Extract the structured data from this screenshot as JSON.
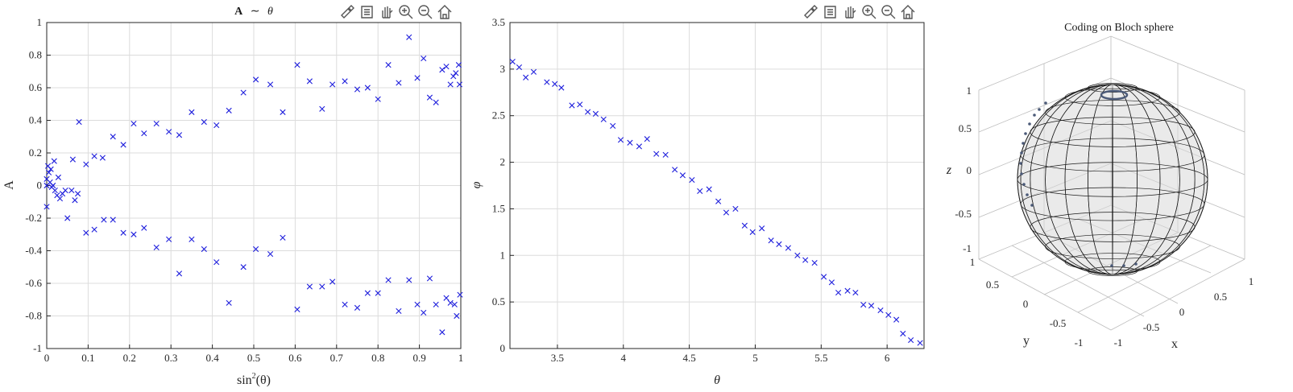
{
  "colors": {
    "marker": "#1f1fdc",
    "grid": "#dcdcdc",
    "axis": "#262626",
    "sphere": "#d9d9d9"
  },
  "toolbar_icons": [
    "brush-icon",
    "legend-icon",
    "pan-icon",
    "zoom-in-icon",
    "zoom-out-icon",
    "home-icon"
  ],
  "chart_data": [
    {
      "type": "scatter",
      "title_text": "A ∼ θ",
      "title_a": "A",
      "title_sim": "∼",
      "title_theta": "θ",
      "xlabel": "sin^{2}(θ)",
      "xlabel_base": "sin",
      "xlabel_exp": "2",
      "xlabel_arg": "(θ)",
      "ylabel": "A",
      "xlim": [
        0,
        1
      ],
      "ylim": [
        -1,
        1
      ],
      "xticks": [
        "0",
        "0.1",
        "0.2",
        "0.3",
        "0.4",
        "0.5",
        "0.6",
        "0.7",
        "0.8",
        "0.9",
        "1"
      ],
      "yticks": [
        "-1",
        "-0.8",
        "-0.6",
        "-0.4",
        "-0.2",
        "0",
        "0.2",
        "0.4",
        "0.6",
        "0.8",
        "1"
      ],
      "grid": true,
      "marker": "x",
      "points": [
        [
          0.0,
          -0.13
        ],
        [
          0.0,
          0.0
        ],
        [
          0.0,
          0.04
        ],
        [
          0.003,
          0.12
        ],
        [
          0.005,
          0.08
        ],
        [
          0.008,
          0.02
        ],
        [
          0.01,
          0.1
        ],
        [
          0.012,
          -0.01
        ],
        [
          0.015,
          0.0
        ],
        [
          0.018,
          0.15
        ],
        [
          0.02,
          -0.03
        ],
        [
          0.025,
          -0.06
        ],
        [
          0.028,
          0.05
        ],
        [
          0.032,
          -0.08
        ],
        [
          0.038,
          -0.05
        ],
        [
          0.045,
          -0.03
        ],
        [
          0.05,
          -0.2
        ],
        [
          0.06,
          -0.03
        ],
        [
          0.063,
          0.16
        ],
        [
          0.068,
          -0.09
        ],
        [
          0.075,
          -0.05
        ],
        [
          0.078,
          0.39
        ],
        [
          0.095,
          0.13
        ],
        [
          0.095,
          -0.29
        ],
        [
          0.115,
          0.18
        ],
        [
          0.115,
          -0.27
        ],
        [
          0.135,
          0.17
        ],
        [
          0.138,
          -0.21
        ],
        [
          0.16,
          0.3
        ],
        [
          0.16,
          -0.21
        ],
        [
          0.185,
          0.25
        ],
        [
          0.185,
          -0.29
        ],
        [
          0.21,
          0.38
        ],
        [
          0.21,
          -0.3
        ],
        [
          0.235,
          0.32
        ],
        [
          0.235,
          -0.26
        ],
        [
          0.265,
          0.38
        ],
        [
          0.265,
          -0.38
        ],
        [
          0.295,
          0.33
        ],
        [
          0.295,
          -0.33
        ],
        [
          0.32,
          0.31
        ],
        [
          0.32,
          -0.54
        ],
        [
          0.35,
          0.45
        ],
        [
          0.35,
          -0.33
        ],
        [
          0.38,
          0.39
        ],
        [
          0.38,
          -0.39
        ],
        [
          0.41,
          0.37
        ],
        [
          0.41,
          -0.47
        ],
        [
          0.44,
          0.46
        ],
        [
          0.44,
          -0.72
        ],
        [
          0.475,
          0.57
        ],
        [
          0.475,
          -0.5
        ],
        [
          0.505,
          0.65
        ],
        [
          0.505,
          -0.39
        ],
        [
          0.54,
          0.62
        ],
        [
          0.54,
          -0.42
        ],
        [
          0.57,
          0.45
        ],
        [
          0.57,
          -0.32
        ],
        [
          0.605,
          0.74
        ],
        [
          0.605,
          -0.76
        ],
        [
          0.635,
          0.64
        ],
        [
          0.635,
          -0.62
        ],
        [
          0.665,
          0.47
        ],
        [
          0.665,
          -0.62
        ],
        [
          0.69,
          0.62
        ],
        [
          0.69,
          -0.59
        ],
        [
          0.72,
          0.64
        ],
        [
          0.72,
          -0.73
        ],
        [
          0.75,
          0.59
        ],
        [
          0.75,
          -0.75
        ],
        [
          0.775,
          0.6
        ],
        [
          0.775,
          -0.66
        ],
        [
          0.8,
          0.53
        ],
        [
          0.8,
          -0.66
        ],
        [
          0.825,
          0.74
        ],
        [
          0.825,
          -0.58
        ],
        [
          0.85,
          0.63
        ],
        [
          0.85,
          -0.77
        ],
        [
          0.875,
          0.91
        ],
        [
          0.875,
          -0.58
        ],
        [
          0.895,
          0.66
        ],
        [
          0.895,
          -0.73
        ],
        [
          0.91,
          0.78
        ],
        [
          0.91,
          -0.78
        ],
        [
          0.925,
          0.54
        ],
        [
          0.925,
          -0.57
        ],
        [
          0.94,
          0.51
        ],
        [
          0.94,
          -0.73
        ],
        [
          0.955,
          0.71
        ],
        [
          0.955,
          -0.9
        ],
        [
          0.965,
          0.73
        ],
        [
          0.965,
          -0.69
        ],
        [
          0.975,
          0.62
        ],
        [
          0.975,
          -0.72
        ],
        [
          0.982,
          0.67
        ],
        [
          0.985,
          -0.73
        ],
        [
          0.988,
          0.69
        ],
        [
          0.99,
          -0.8
        ],
        [
          0.995,
          0.74
        ],
        [
          0.997,
          0.62
        ],
        [
          0.998,
          -0.67
        ]
      ]
    },
    {
      "type": "scatter",
      "xlabel": "θ",
      "ylabel": "φ",
      "xlim": [
        3.14,
        6.28
      ],
      "ylim": [
        0,
        3.5
      ],
      "xticks": [
        "3.5",
        "4",
        "4.5",
        "5",
        "5.5",
        "6"
      ],
      "yticks": [
        "0",
        "0.5",
        "1",
        "1.5",
        "2",
        "2.5",
        "3",
        "3.5"
      ],
      "grid": true,
      "marker": "x",
      "points": [
        [
          3.16,
          3.08
        ],
        [
          3.21,
          3.02
        ],
        [
          3.26,
          2.91
        ],
        [
          3.32,
          2.97
        ],
        [
          3.42,
          2.86
        ],
        [
          3.48,
          2.84
        ],
        [
          3.53,
          2.8
        ],
        [
          3.61,
          2.61
        ],
        [
          3.67,
          2.62
        ],
        [
          3.73,
          2.54
        ],
        [
          3.79,
          2.52
        ],
        [
          3.85,
          2.46
        ],
        [
          3.92,
          2.39
        ],
        [
          3.98,
          2.24
        ],
        [
          4.05,
          2.21
        ],
        [
          4.12,
          2.17
        ],
        [
          4.18,
          2.25
        ],
        [
          4.25,
          2.09
        ],
        [
          4.32,
          2.08
        ],
        [
          4.39,
          1.92
        ],
        [
          4.45,
          1.86
        ],
        [
          4.52,
          1.81
        ],
        [
          4.58,
          1.69
        ],
        [
          4.65,
          1.71
        ],
        [
          4.72,
          1.58
        ],
        [
          4.78,
          1.46
        ],
        [
          4.85,
          1.5
        ],
        [
          4.92,
          1.32
        ],
        [
          4.98,
          1.25
        ],
        [
          5.05,
          1.29
        ],
        [
          5.12,
          1.16
        ],
        [
          5.18,
          1.12
        ],
        [
          5.25,
          1.08
        ],
        [
          5.32,
          1.0
        ],
        [
          5.38,
          0.95
        ],
        [
          5.45,
          0.92
        ],
        [
          5.52,
          0.77
        ],
        [
          5.58,
          0.71
        ],
        [
          5.63,
          0.6
        ],
        [
          5.7,
          0.62
        ],
        [
          5.76,
          0.6
        ],
        [
          5.82,
          0.47
        ],
        [
          5.88,
          0.46
        ],
        [
          5.95,
          0.41
        ],
        [
          6.01,
          0.36
        ],
        [
          6.07,
          0.31
        ],
        [
          6.12,
          0.16
        ],
        [
          6.18,
          0.09
        ],
        [
          6.25,
          0.06
        ]
      ]
    },
    {
      "type": "scatter3d",
      "title": "Coding on Bloch sphere",
      "xlabel": "x",
      "ylabel": "y",
      "zlabel": "z",
      "xticks": [
        "-1",
        "-0.5",
        "0",
        "0.5",
        "1"
      ],
      "yticks": [
        "-1",
        "-0.5",
        "0",
        "0.5",
        "1"
      ],
      "zticks": [
        "-1",
        "-0.5",
        "0",
        "0.5",
        "1"
      ],
      "xlim": [
        -1,
        1
      ],
      "ylim": [
        -1,
        1
      ],
      "zlim": [
        -1,
        1
      ],
      "grid": true
    }
  ]
}
